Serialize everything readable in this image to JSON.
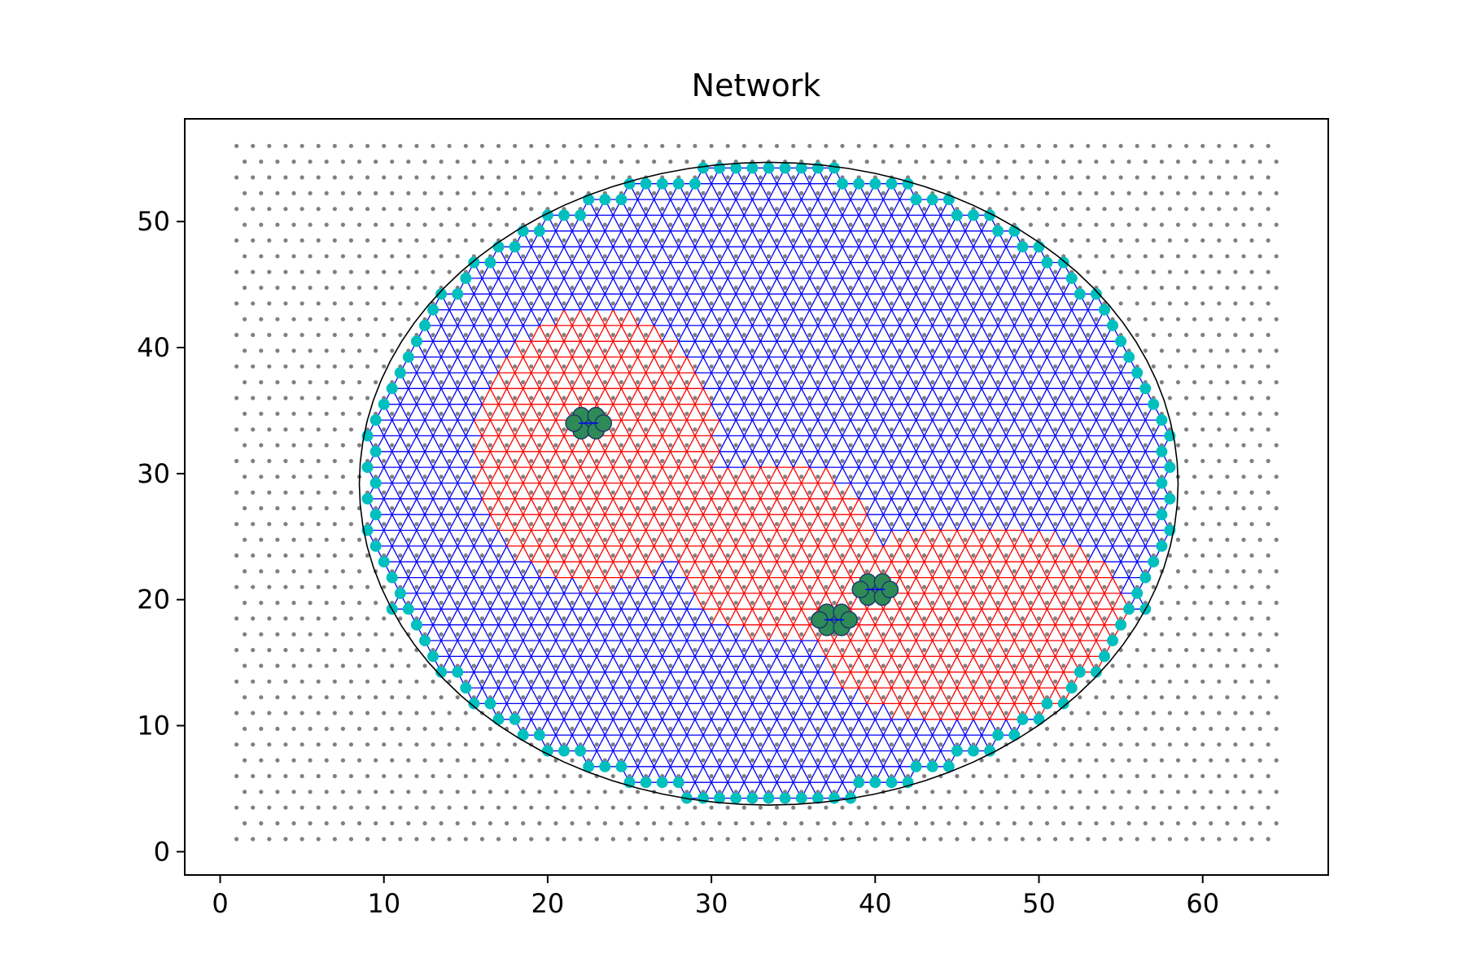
{
  "chart_data": {
    "type": "scatter",
    "title": "Network",
    "xlabel": "",
    "ylabel": "",
    "xlim": [
      -2.16,
      67.67
    ],
    "ylim": [
      -1.85,
      58.15
    ],
    "x_ticks": [
      0,
      10,
      20,
      30,
      40,
      50,
      60
    ],
    "y_ticks": [
      0,
      10,
      20,
      30,
      40,
      50
    ],
    "grid": false,
    "legend": "none",
    "background_lattice": {
      "description": "gray dot lattice",
      "x_range": [
        1.0,
        64.5
      ],
      "y_range": [
        1.0,
        55.8
      ],
      "row_spacing": 1.25,
      "col_spacing": 1.0,
      "row_offset": 0.5,
      "color": "#808080"
    },
    "network_region": {
      "description": "triangular mesh inside disc-like boundary",
      "center": [
        33.5,
        29.2
      ],
      "radius_x": 25.0,
      "radius_y": 25.5,
      "edge_color_blue": "#0000ff",
      "edge_color_red": "#ff0000",
      "boundary_color": "#000000",
      "boundary_node_color": "#00bfbf"
    },
    "source_nodes": [
      {
        "x": 22.5,
        "y": 34.0
      },
      {
        "x": 40.0,
        "y": 20.8
      },
      {
        "x": 37.5,
        "y": 18.4
      }
    ],
    "source_node_colors": {
      "fill": "#2e8b57",
      "outline": "#1a3a6a"
    }
  }
}
